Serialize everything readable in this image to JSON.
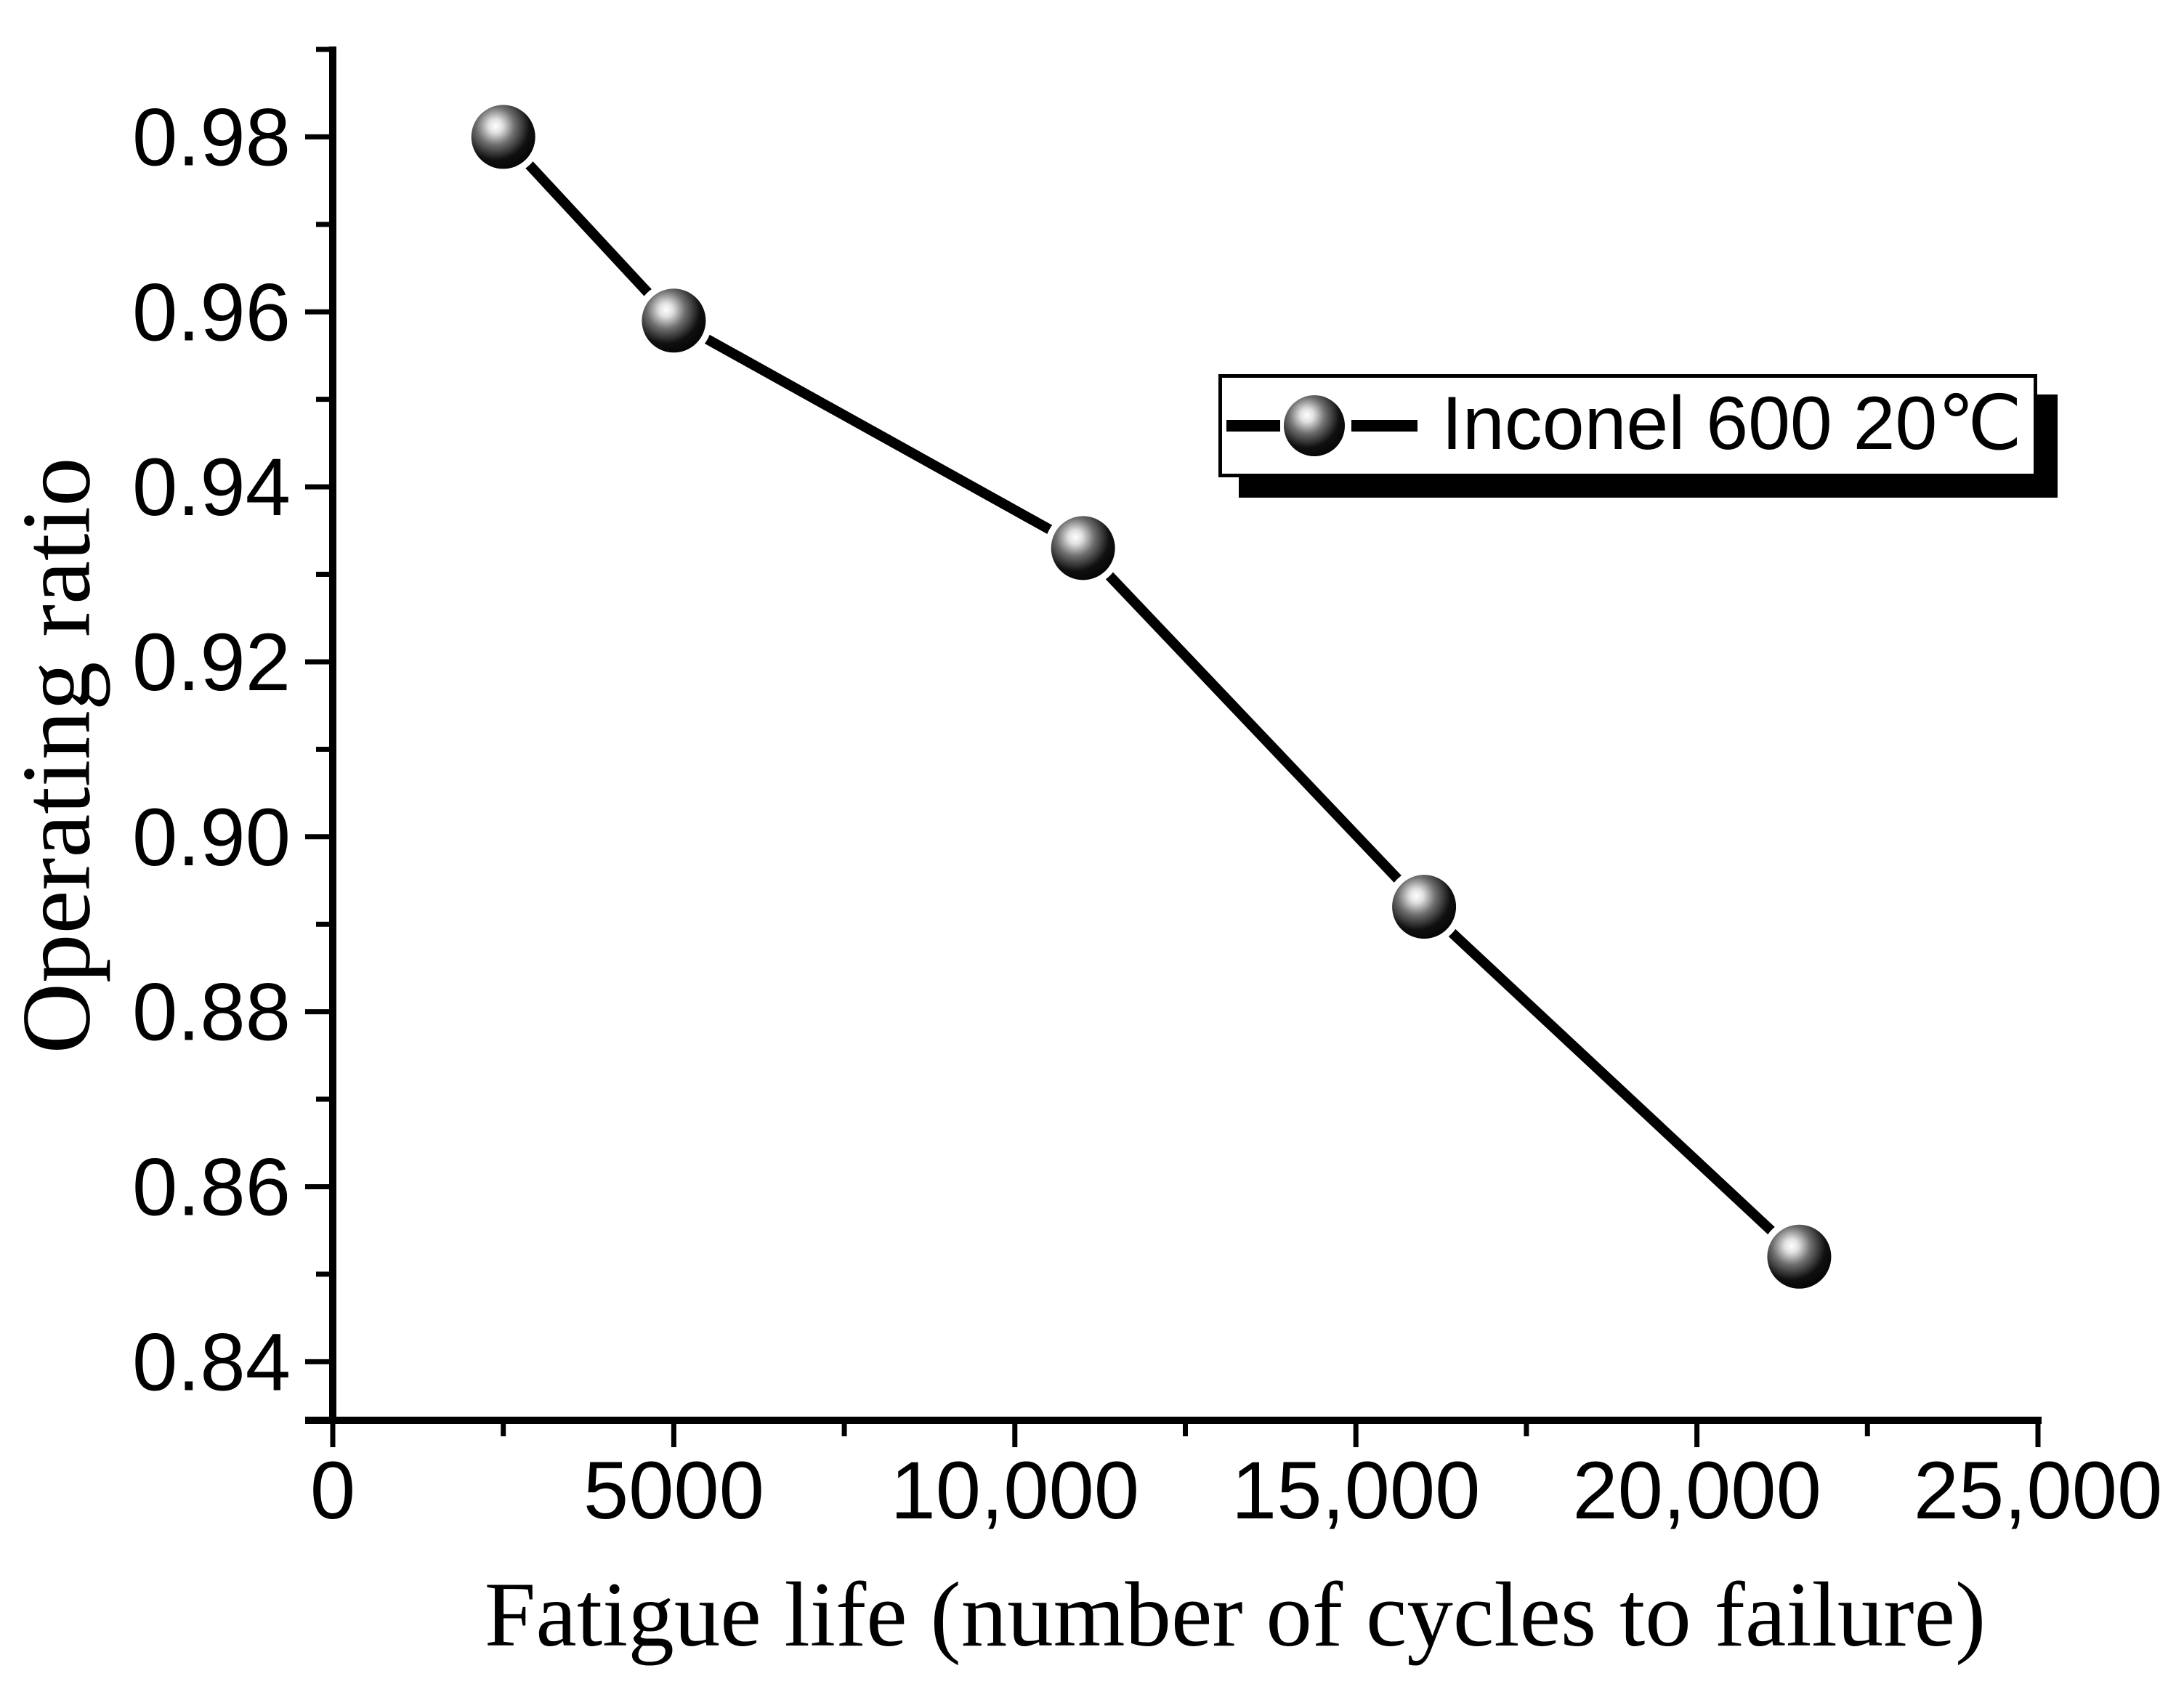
{
  "figure": {
    "background": "#ffffff",
    "ink_color": "#000000"
  },
  "chart_data": {
    "type": "line",
    "title": "",
    "xlabel": "Fatigue life (number of cycles to failure)",
    "ylabel": "Operating ratio",
    "xlim": [
      0,
      25000
    ],
    "ylim": [
      0.8333,
      0.99
    ],
    "grid": false,
    "legend": {
      "position": "upper-right",
      "border": true,
      "shadow": true,
      "entries": [
        "Inconel 600 20℃"
      ]
    },
    "series": [
      {
        "name": "Inconel 600 20℃",
        "marker": "ball-3d",
        "line_color": "#000000",
        "x": [
          2500,
          5000,
          11000,
          16000,
          21500
        ],
        "y": [
          0.98,
          0.959,
          0.933,
          0.892,
          0.852
        ]
      }
    ],
    "x_ticks": {
      "major": [
        0,
        5000,
        10000,
        15000,
        20000,
        25000
      ],
      "labels": [
        "0",
        "5000",
        "10,000",
        "15,000",
        "20,000",
        "25,000"
      ],
      "minor": [
        2500,
        7500,
        12500,
        17500,
        22500
      ]
    },
    "y_ticks": {
      "major": [
        0.98,
        0.96,
        0.94,
        0.92,
        0.9,
        0.88,
        0.86,
        0.84
      ],
      "labels": [
        "0.98",
        "0.96",
        "0.94",
        "0.92",
        "0.90",
        "0.88",
        "0.86",
        "0.84"
      ],
      "minor": [
        0.99,
        0.97,
        0.95,
        0.93,
        0.91,
        0.89,
        0.87,
        0.85
      ]
    }
  }
}
